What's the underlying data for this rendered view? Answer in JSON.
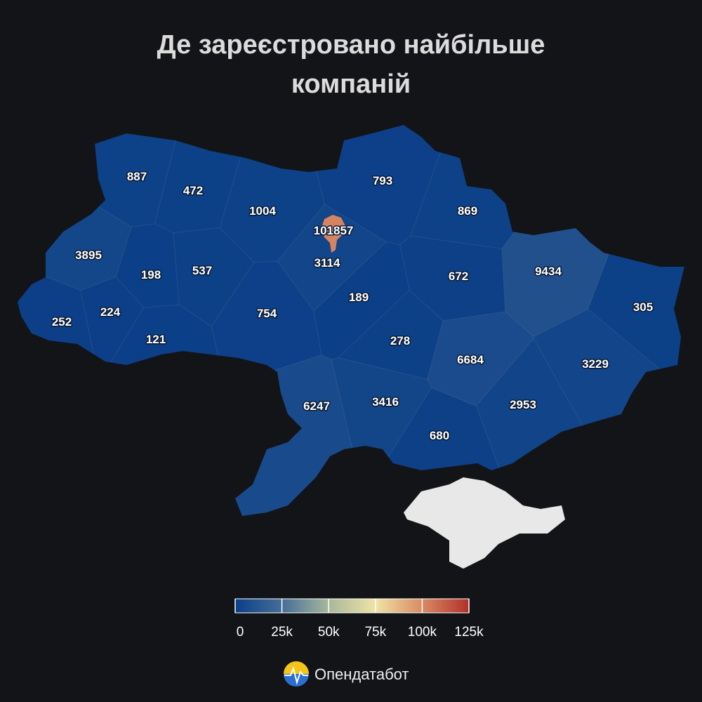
{
  "title_lines": [
    "Де зареєстровано найбільше",
    "компаній"
  ],
  "regions": [
    887,
    472,
    1004,
    101857,
    793,
    869,
    3895,
    198,
    537,
    3114,
    672,
    9434,
    252,
    224,
    121,
    754,
    189,
    305,
    278,
    6684,
    3229,
    6247,
    3416,
    2953,
    680
  ],
  "colorscale": [
    "#0b3f87",
    "#456d98",
    "#a9b79c",
    "#efe3a6",
    "#d98a64",
    "#b3302a"
  ],
  "legend_ticks": [
    0,
    {
      "value": 25000,
      "label": "25k"
    },
    {
      "value": 50000,
      "label": "50k"
    },
    {
      "value": 75000,
      "label": "75k"
    },
    {
      "value": 100000,
      "label": "100k"
    },
    {
      "value": 125000,
      "label": "125k"
    }
  ],
  "brand": "Опендатабот"
}
